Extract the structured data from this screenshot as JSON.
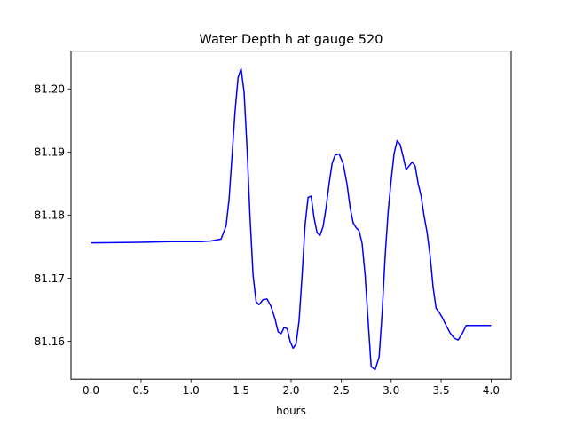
{
  "chart_data": {
    "type": "line",
    "title": "Water Depth h at gauge 520",
    "xlabel": "hours",
    "ylabel": "",
    "xlim": [
      -0.2,
      4.2
    ],
    "ylim": [
      81.154,
      81.206
    ],
    "xticks": [
      0.0,
      0.5,
      1.0,
      1.5,
      2.0,
      2.5,
      3.0,
      3.5,
      4.0
    ],
    "xtick_labels": [
      "0.0",
      "0.5",
      "1.0",
      "1.5",
      "2.0",
      "2.5",
      "3.0",
      "3.5",
      "4.0"
    ],
    "yticks": [
      81.16,
      81.17,
      81.18,
      81.19,
      81.2
    ],
    "ytick_labels": [
      "81.16",
      "81.17",
      "81.18",
      "81.19",
      "81.20"
    ],
    "grid": false,
    "line_color": "#0000ff",
    "series": [
      {
        "x": [
          0.0,
          0.5,
          0.8,
          1.0,
          1.1,
          1.2,
          1.3,
          1.35,
          1.38,
          1.41,
          1.44,
          1.47,
          1.5,
          1.53,
          1.56,
          1.59,
          1.62,
          1.65,
          1.68,
          1.72,
          1.76,
          1.8,
          1.84,
          1.87,
          1.9,
          1.93,
          1.96,
          1.99,
          2.02,
          2.05,
          2.08,
          2.11,
          2.14,
          2.17,
          2.2,
          2.23,
          2.26,
          2.29,
          2.32,
          2.35,
          2.38,
          2.41,
          2.44,
          2.48,
          2.52,
          2.56,
          2.59,
          2.62,
          2.65,
          2.68,
          2.71,
          2.74,
          2.77,
          2.8,
          2.84,
          2.88,
          2.91,
          2.94,
          2.97,
          3.0,
          3.03,
          3.06,
          3.09,
          3.12,
          3.15,
          3.18,
          3.21,
          3.24,
          3.27,
          3.3,
          3.33,
          3.36,
          3.39,
          3.42,
          3.45,
          3.48,
          3.51,
          3.55,
          3.59,
          3.63,
          3.67,
          3.71,
          3.75,
          3.79,
          3.83,
          3.87,
          3.91,
          3.95,
          3.98,
          4.0
        ],
        "y": [
          81.1756,
          81.1757,
          81.1758,
          81.1758,
          81.1758,
          81.1759,
          81.1762,
          81.1783,
          81.1825,
          81.1895,
          81.1965,
          81.2018,
          81.2032,
          81.1995,
          81.1905,
          81.1795,
          81.1705,
          81.1663,
          81.1658,
          81.1666,
          81.1667,
          81.1655,
          81.1635,
          81.1615,
          81.1612,
          81.1622,
          81.162,
          81.16,
          81.1589,
          81.1596,
          81.1633,
          81.1705,
          81.1785,
          81.1828,
          81.183,
          81.1795,
          81.1772,
          81.1768,
          81.1782,
          81.1812,
          81.185,
          81.1882,
          81.1895,
          81.1897,
          81.1882,
          81.1848,
          81.1812,
          81.1788,
          81.178,
          81.1775,
          81.1755,
          81.1705,
          81.1632,
          81.156,
          81.1555,
          81.1575,
          81.1645,
          81.1735,
          81.1805,
          81.1855,
          81.1898,
          81.1918,
          81.1912,
          81.1893,
          81.1872,
          81.1878,
          81.1884,
          81.1878,
          81.185,
          81.183,
          81.1798,
          81.1772,
          81.1735,
          81.1685,
          81.1652,
          81.1646,
          81.1638,
          81.1625,
          81.1613,
          81.1605,
          81.1602,
          81.1612,
          81.1625,
          81.1625,
          81.1625,
          81.1625,
          81.1625,
          81.1625,
          81.1625,
          81.1625
        ]
      }
    ]
  }
}
